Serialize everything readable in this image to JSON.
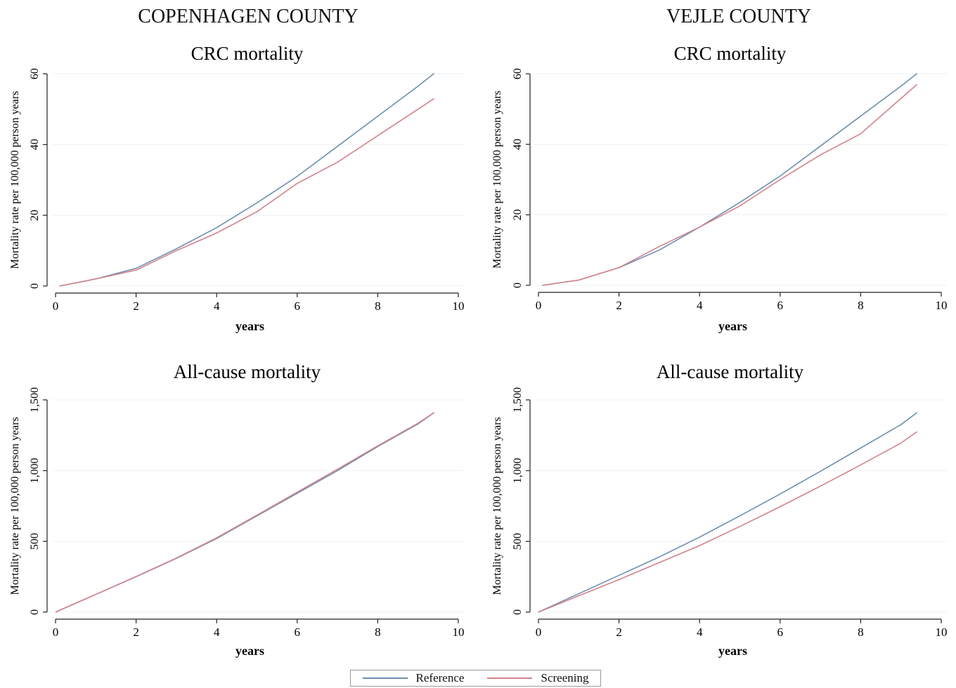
{
  "county_titles": [
    "COPENHAGEN COUNTY",
    "VEJLE COUNTY"
  ],
  "legend": [
    {
      "label": "Reference",
      "color": "#6f8fb0"
    },
    {
      "label": "Screening",
      "color": "#d3828a"
    }
  ],
  "chart_data": [
    {
      "type": "line",
      "county": "COPENHAGEN COUNTY",
      "title": "CRC mortality",
      "xlabel": "years",
      "ylabel": "Mortality rate per 100,000 person years",
      "xlim": [
        0,
        10
      ],
      "ylim": [
        0,
        60
      ],
      "xticks": [
        0,
        2,
        4,
        6,
        8,
        10
      ],
      "yticks": [
        0,
        20,
        40,
        60
      ],
      "ytick_labels": [
        "0",
        "20",
        "40",
        "60"
      ],
      "x": [
        0.1,
        1,
        2,
        3,
        4,
        5,
        6,
        7,
        8,
        9,
        9.4
      ],
      "series": [
        {
          "name": "Reference",
          "color": "#6f8fb0",
          "values": [
            0,
            2,
            5,
            10.5,
            16.5,
            23.5,
            31,
            39.5,
            48,
            56.5,
            60.1
          ]
        },
        {
          "name": "Screening",
          "color": "#d3828a",
          "values": [
            0,
            2,
            4.5,
            10,
            15,
            21,
            29,
            35,
            42.5,
            50,
            53
          ]
        }
      ]
    },
    {
      "type": "line",
      "county": "VEJLE COUNTY",
      "title": "CRC mortality",
      "xlabel": "years",
      "ylabel": "Mortality rate per 100,000 person years",
      "xlim": [
        0,
        10
      ],
      "ylim": [
        0,
        60
      ],
      "xticks": [
        0,
        2,
        4,
        6,
        8,
        10
      ],
      "yticks": [
        0,
        20,
        40,
        60
      ],
      "ytick_labels": [
        "0",
        "20",
        "40",
        "60"
      ],
      "x": [
        0.1,
        1,
        2,
        3,
        4,
        5,
        6,
        7,
        8,
        9,
        9.4
      ],
      "series": [
        {
          "name": "Reference",
          "color": "#6f8fb0",
          "values": [
            0,
            1.5,
            5,
            10,
            16.5,
            23.5,
            31,
            39.5,
            48,
            56.5,
            60.1
          ]
        },
        {
          "name": "Screening",
          "color": "#d3828a",
          "values": [
            0,
            1.5,
            5,
            11,
            16.5,
            22.5,
            30,
            37,
            43,
            53,
            57
          ]
        }
      ]
    },
    {
      "type": "line",
      "county": "COPENHAGEN COUNTY",
      "title": "All-cause mortality",
      "xlabel": "years",
      "ylabel": "Mortality rate per 100,000 person years",
      "xlim": [
        0,
        10
      ],
      "ylim": [
        0,
        1500
      ],
      "xticks": [
        0,
        2,
        4,
        6,
        8,
        10
      ],
      "yticks": [
        0,
        500,
        1000,
        1500
      ],
      "ytick_labels": [
        "0",
        "500",
        "1,000",
        "1,500"
      ],
      "x": [
        0,
        1,
        2,
        3,
        4,
        5,
        6,
        7,
        8,
        9,
        9.4
      ],
      "series": [
        {
          "name": "Reference",
          "color": "#6f8fb0",
          "values": [
            0,
            125,
            250,
            380,
            520,
            680,
            840,
            1000,
            1170,
            1330,
            1410
          ]
        },
        {
          "name": "Screening",
          "color": "#d3828a",
          "values": [
            0,
            125,
            252,
            382,
            525,
            685,
            848,
            1010,
            1175,
            1335,
            1410
          ]
        }
      ]
    },
    {
      "type": "line",
      "county": "VEJLE COUNTY",
      "title": "All-cause mortality",
      "xlabel": "years",
      "ylabel": "Mortality rate per 100,000 person years",
      "xlim": [
        0,
        10
      ],
      "ylim": [
        0,
        1500
      ],
      "xticks": [
        0,
        2,
        4,
        6,
        8,
        10
      ],
      "yticks": [
        0,
        500,
        1000,
        1500
      ],
      "ytick_labels": [
        "0",
        "500",
        "1,000",
        "1,500"
      ],
      "x": [
        0,
        1,
        2,
        3,
        4,
        5,
        6,
        7,
        8,
        9,
        9.4
      ],
      "series": [
        {
          "name": "Reference",
          "color": "#6f8fb0",
          "values": [
            0,
            130,
            260,
            390,
            530,
            680,
            835,
            995,
            1160,
            1325,
            1410
          ]
        },
        {
          "name": "Screening",
          "color": "#d3828a",
          "values": [
            0,
            115,
            230,
            350,
            470,
            605,
            745,
            890,
            1040,
            1195,
            1275
          ]
        }
      ]
    }
  ]
}
